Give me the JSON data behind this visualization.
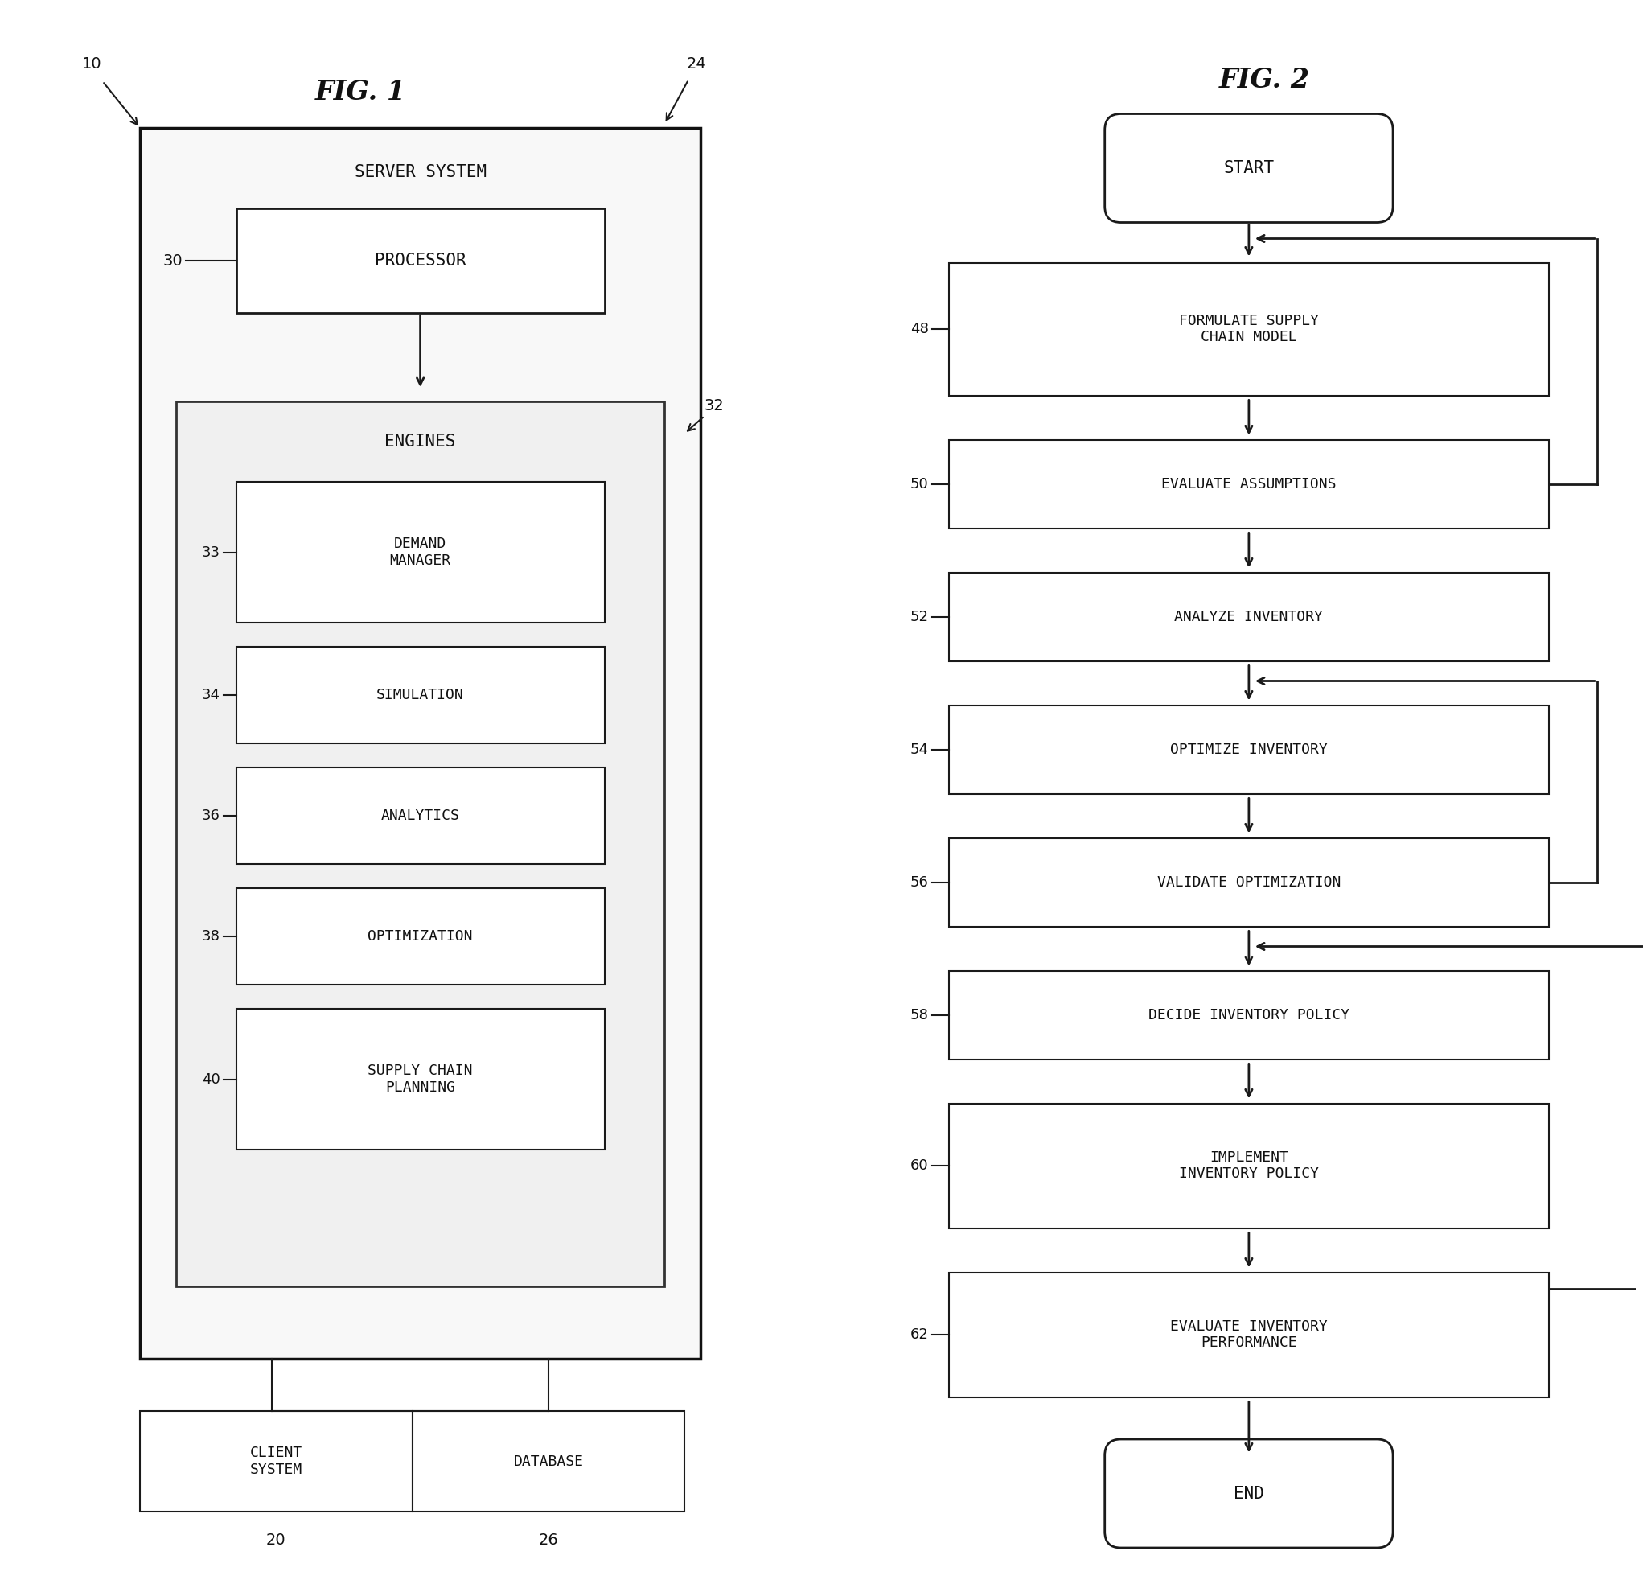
{
  "bg_color": "#ffffff",
  "fig_width": 20.43,
  "fig_height": 19.69,
  "fig1": {
    "title": "FIG. 1",
    "label_10": "10",
    "label_24": "24",
    "server_system_label": "SERVER SYSTEM",
    "processor_label": "PROCESSOR",
    "processor_ref": "30",
    "engines_label": "ENGINES",
    "engines_ref": "32",
    "boxes": [
      {
        "label": "DEMAND\nMANAGER",
        "ref": "33"
      },
      {
        "label": "SIMULATION",
        "ref": "34"
      },
      {
        "label": "ANALYTICS",
        "ref": "36"
      },
      {
        "label": "OPTIMIZATION",
        "ref": "38"
      },
      {
        "label": "SUPPLY CHAIN\nPLANNING",
        "ref": "40"
      }
    ],
    "client_label": "CLIENT\nSYSTEM",
    "client_ref": "20",
    "database_label": "DATABASE",
    "database_ref": "26"
  },
  "fig2": {
    "title": "FIG. 2",
    "start_label": "START",
    "end_label": "END",
    "steps": [
      {
        "label": "FORMULATE SUPPLY\nCHAIN MODEL",
        "ref": "48"
      },
      {
        "label": "EVALUATE ASSUMPTIONS",
        "ref": "50"
      },
      {
        "label": "ANALYZE INVENTORY",
        "ref": "52"
      },
      {
        "label": "OPTIMIZE INVENTORY",
        "ref": "54"
      },
      {
        "label": "VALIDATE OPTIMIZATION",
        "ref": "56"
      },
      {
        "label": "DECIDE INVENTORY POLICY",
        "ref": "58"
      },
      {
        "label": "IMPLEMENT\nINVENTORY POLICY",
        "ref": "60"
      },
      {
        "label": "EVALUATE INVENTORY\nPERFORMANCE",
        "ref": "62"
      }
    ]
  }
}
